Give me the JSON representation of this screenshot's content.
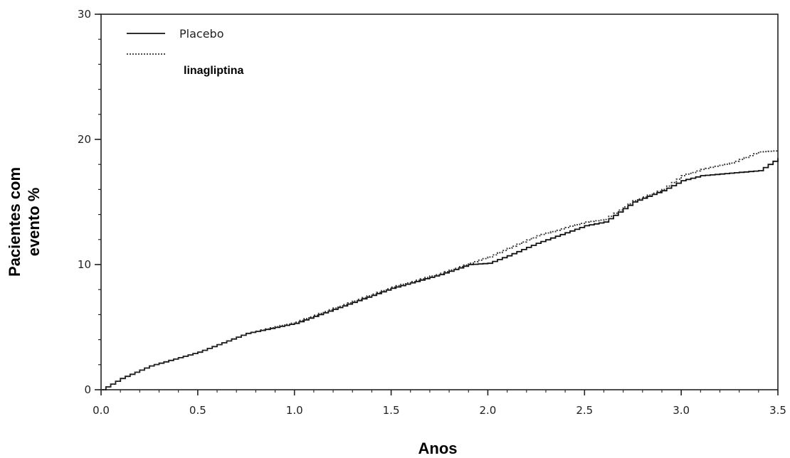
{
  "chart_data": {
    "type": "line",
    "xlabel": "Anos",
    "ylabel": [
      "Pacientes com",
      "evento %"
    ],
    "xlim": [
      0,
      3.5
    ],
    "ylim": [
      0,
      30
    ],
    "xticks": [
      0.0,
      0.5,
      1.0,
      1.5,
      2.0,
      2.5,
      3.0,
      3.5
    ],
    "xtick_labels": [
      "0.0",
      "0.5",
      "1.0",
      "1.5",
      "2.0",
      "2.5",
      "3.0",
      "3.5"
    ],
    "yticks": [
      0,
      10,
      20,
      30
    ],
    "ytick_labels": [
      "0",
      "10",
      "20",
      "30"
    ],
    "grid": false,
    "legend_position": "top-left",
    "series": [
      {
        "name": "Placebo",
        "style": "solid",
        "color": "#111111",
        "x": [
          0,
          0.1,
          0.25,
          0.5,
          0.75,
          1.0,
          1.25,
          1.5,
          1.75,
          1.9,
          2.0,
          2.1,
          2.25,
          2.5,
          2.6,
          2.75,
          2.9,
          3.0,
          3.1,
          3.25,
          3.4,
          3.5
        ],
        "y": [
          0,
          0.9,
          1.9,
          3.0,
          4.5,
          5.3,
          6.7,
          8.1,
          9.2,
          10.0,
          10.1,
          10.7,
          11.7,
          13.1,
          13.4,
          15.0,
          15.9,
          16.7,
          17.1,
          17.3,
          17.5,
          18.5
        ]
      },
      {
        "name": "linagliptina",
        "style": "dotted",
        "color": "#333333",
        "x": [
          0,
          0.1,
          0.25,
          0.5,
          0.75,
          1.0,
          1.25,
          1.5,
          1.75,
          1.9,
          2.0,
          2.1,
          2.25,
          2.5,
          2.6,
          2.75,
          2.9,
          3.0,
          3.1,
          3.25,
          3.4,
          3.5
        ],
        "y": [
          0,
          0.9,
          1.9,
          3.0,
          4.5,
          5.4,
          6.8,
          8.2,
          9.3,
          10.1,
          10.6,
          11.3,
          12.3,
          13.4,
          13.6,
          15.1,
          16.0,
          17.1,
          17.6,
          18.1,
          19.0,
          19.1
        ]
      }
    ]
  }
}
